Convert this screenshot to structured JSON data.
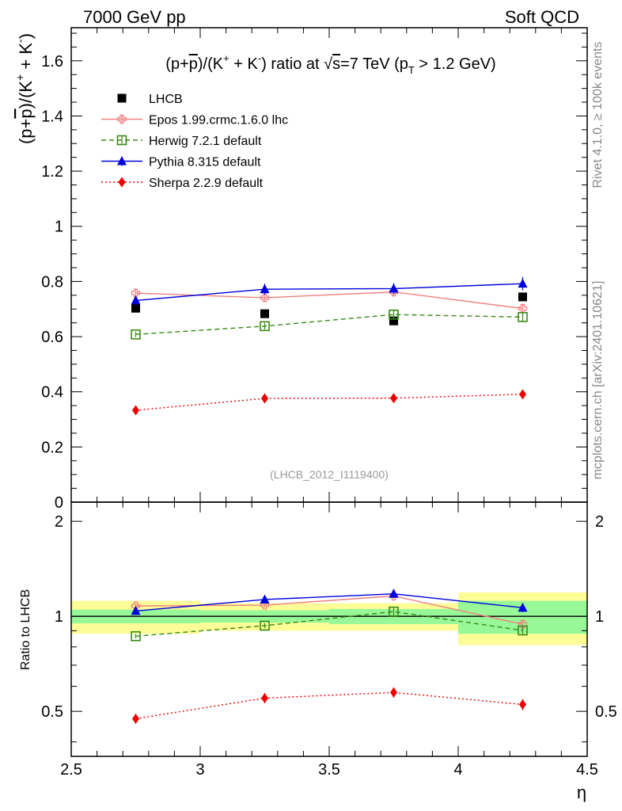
{
  "header": {
    "left_label": "7000 GeV pp",
    "right_label": "Soft QCD"
  },
  "side_labels": {
    "rivet": "Rivet 4.1.0, ≥ 100k events",
    "mcplots": "mcplots.cern.ch [arXiv:2401.10621]"
  },
  "chart_data": {
    "type": "scatter",
    "title": "(p+p̄)/(K⁺ + K⁻) ratio at √s=7 TeV (pT > 1.2 GeV)",
    "title_parts": {
      "lead": "(p+",
      "pbar": "p",
      "mid1": ")/(K",
      "sup_plus": "+",
      "mid2": " + K",
      "sup_minus": "-",
      "mid3": ") ratio at ",
      "sqrt": "√",
      "s": "s",
      "mid4": "=7 TeV (p",
      "sub_t": "T",
      "tail": " > 1.2 GeV)"
    },
    "ylabel": "(p+p̄)/(K⁺ + K⁻)",
    "ylabel_parts": {
      "lead": "(p+",
      "pbar": "p",
      "mid1": ")/(K",
      "sup_plus": "+",
      "mid2": " + K",
      "sup_minus": "-",
      "tail": ")"
    },
    "xlabel": "η",
    "ratio_ylabel": "Ratio to LHCB",
    "watermark": "(LHCB_2012_I1119400)",
    "xlim": [
      2.5,
      4.5
    ],
    "ylim": [
      0,
      1.72
    ],
    "ratio_ylim": [
      0.36,
      2.3
    ],
    "x_ticks": [
      "2.5",
      "3",
      "3.5",
      "4",
      "4.5"
    ],
    "y_ticks": [
      "0",
      "0.2",
      "0.4",
      "0.6",
      "0.8",
      "1",
      "1.2",
      "1.4",
      "1.6"
    ],
    "ratio_y_ticks": [
      "0.5",
      "1",
      "2"
    ],
    "bins": [
      [
        2.5,
        3.0
      ],
      [
        3.0,
        3.5
      ],
      [
        3.5,
        4.0
      ],
      [
        4.0,
        4.5
      ]
    ],
    "x": [
      2.75,
      3.25,
      3.75,
      4.25
    ],
    "legend_position": "top-left",
    "series": [
      {
        "name": "LHCB",
        "role": "data",
        "color": "#000000",
        "marker": "square-filled",
        "line": "none",
        "values": [
          0.703,
          0.683,
          0.657,
          0.744
        ],
        "errors": [
          0.006,
          0.006,
          0.006,
          0.008
        ]
      },
      {
        "name": "Epos 1.99.crmc.1.6.0 lhc",
        "color": "#f08080",
        "marker": "cross-open",
        "line": "solid",
        "values": [
          0.758,
          0.741,
          0.762,
          0.702
        ],
        "errors": [
          0.014,
          0.014,
          0.016,
          0.018
        ]
      },
      {
        "name": "Herwig 7.2.1 default",
        "color": "#3a8a14",
        "marker": "square-open",
        "line": "dashed",
        "values": [
          0.608,
          0.638,
          0.68,
          0.671
        ],
        "errors": [
          0.01,
          0.012,
          0.018,
          0.018
        ]
      },
      {
        "name": "Pythia 8.315 default",
        "color": "#0000dd",
        "marker": "triangle-filled",
        "line": "solid",
        "values": [
          0.731,
          0.772,
          0.774,
          0.792
        ],
        "errors": [
          0.012,
          0.02,
          0.02,
          0.024
        ]
      },
      {
        "name": "Sherpa 2.2.9 default",
        "color": "#ee0000",
        "marker": "diamond-filled",
        "line": "dotted",
        "values": [
          0.333,
          0.376,
          0.377,
          0.391
        ],
        "errors": [
          0.012,
          0.014,
          0.014,
          0.016
        ]
      }
    ],
    "ratio_bands": {
      "inner_color": "#98f898",
      "outer_color": "#fdfd98",
      "inner_halfwidth": [
        0.05,
        0.045,
        0.055,
        0.12
      ],
      "outer_halfwidth": [
        0.12,
        0.1,
        0.1,
        0.19
      ]
    }
  }
}
